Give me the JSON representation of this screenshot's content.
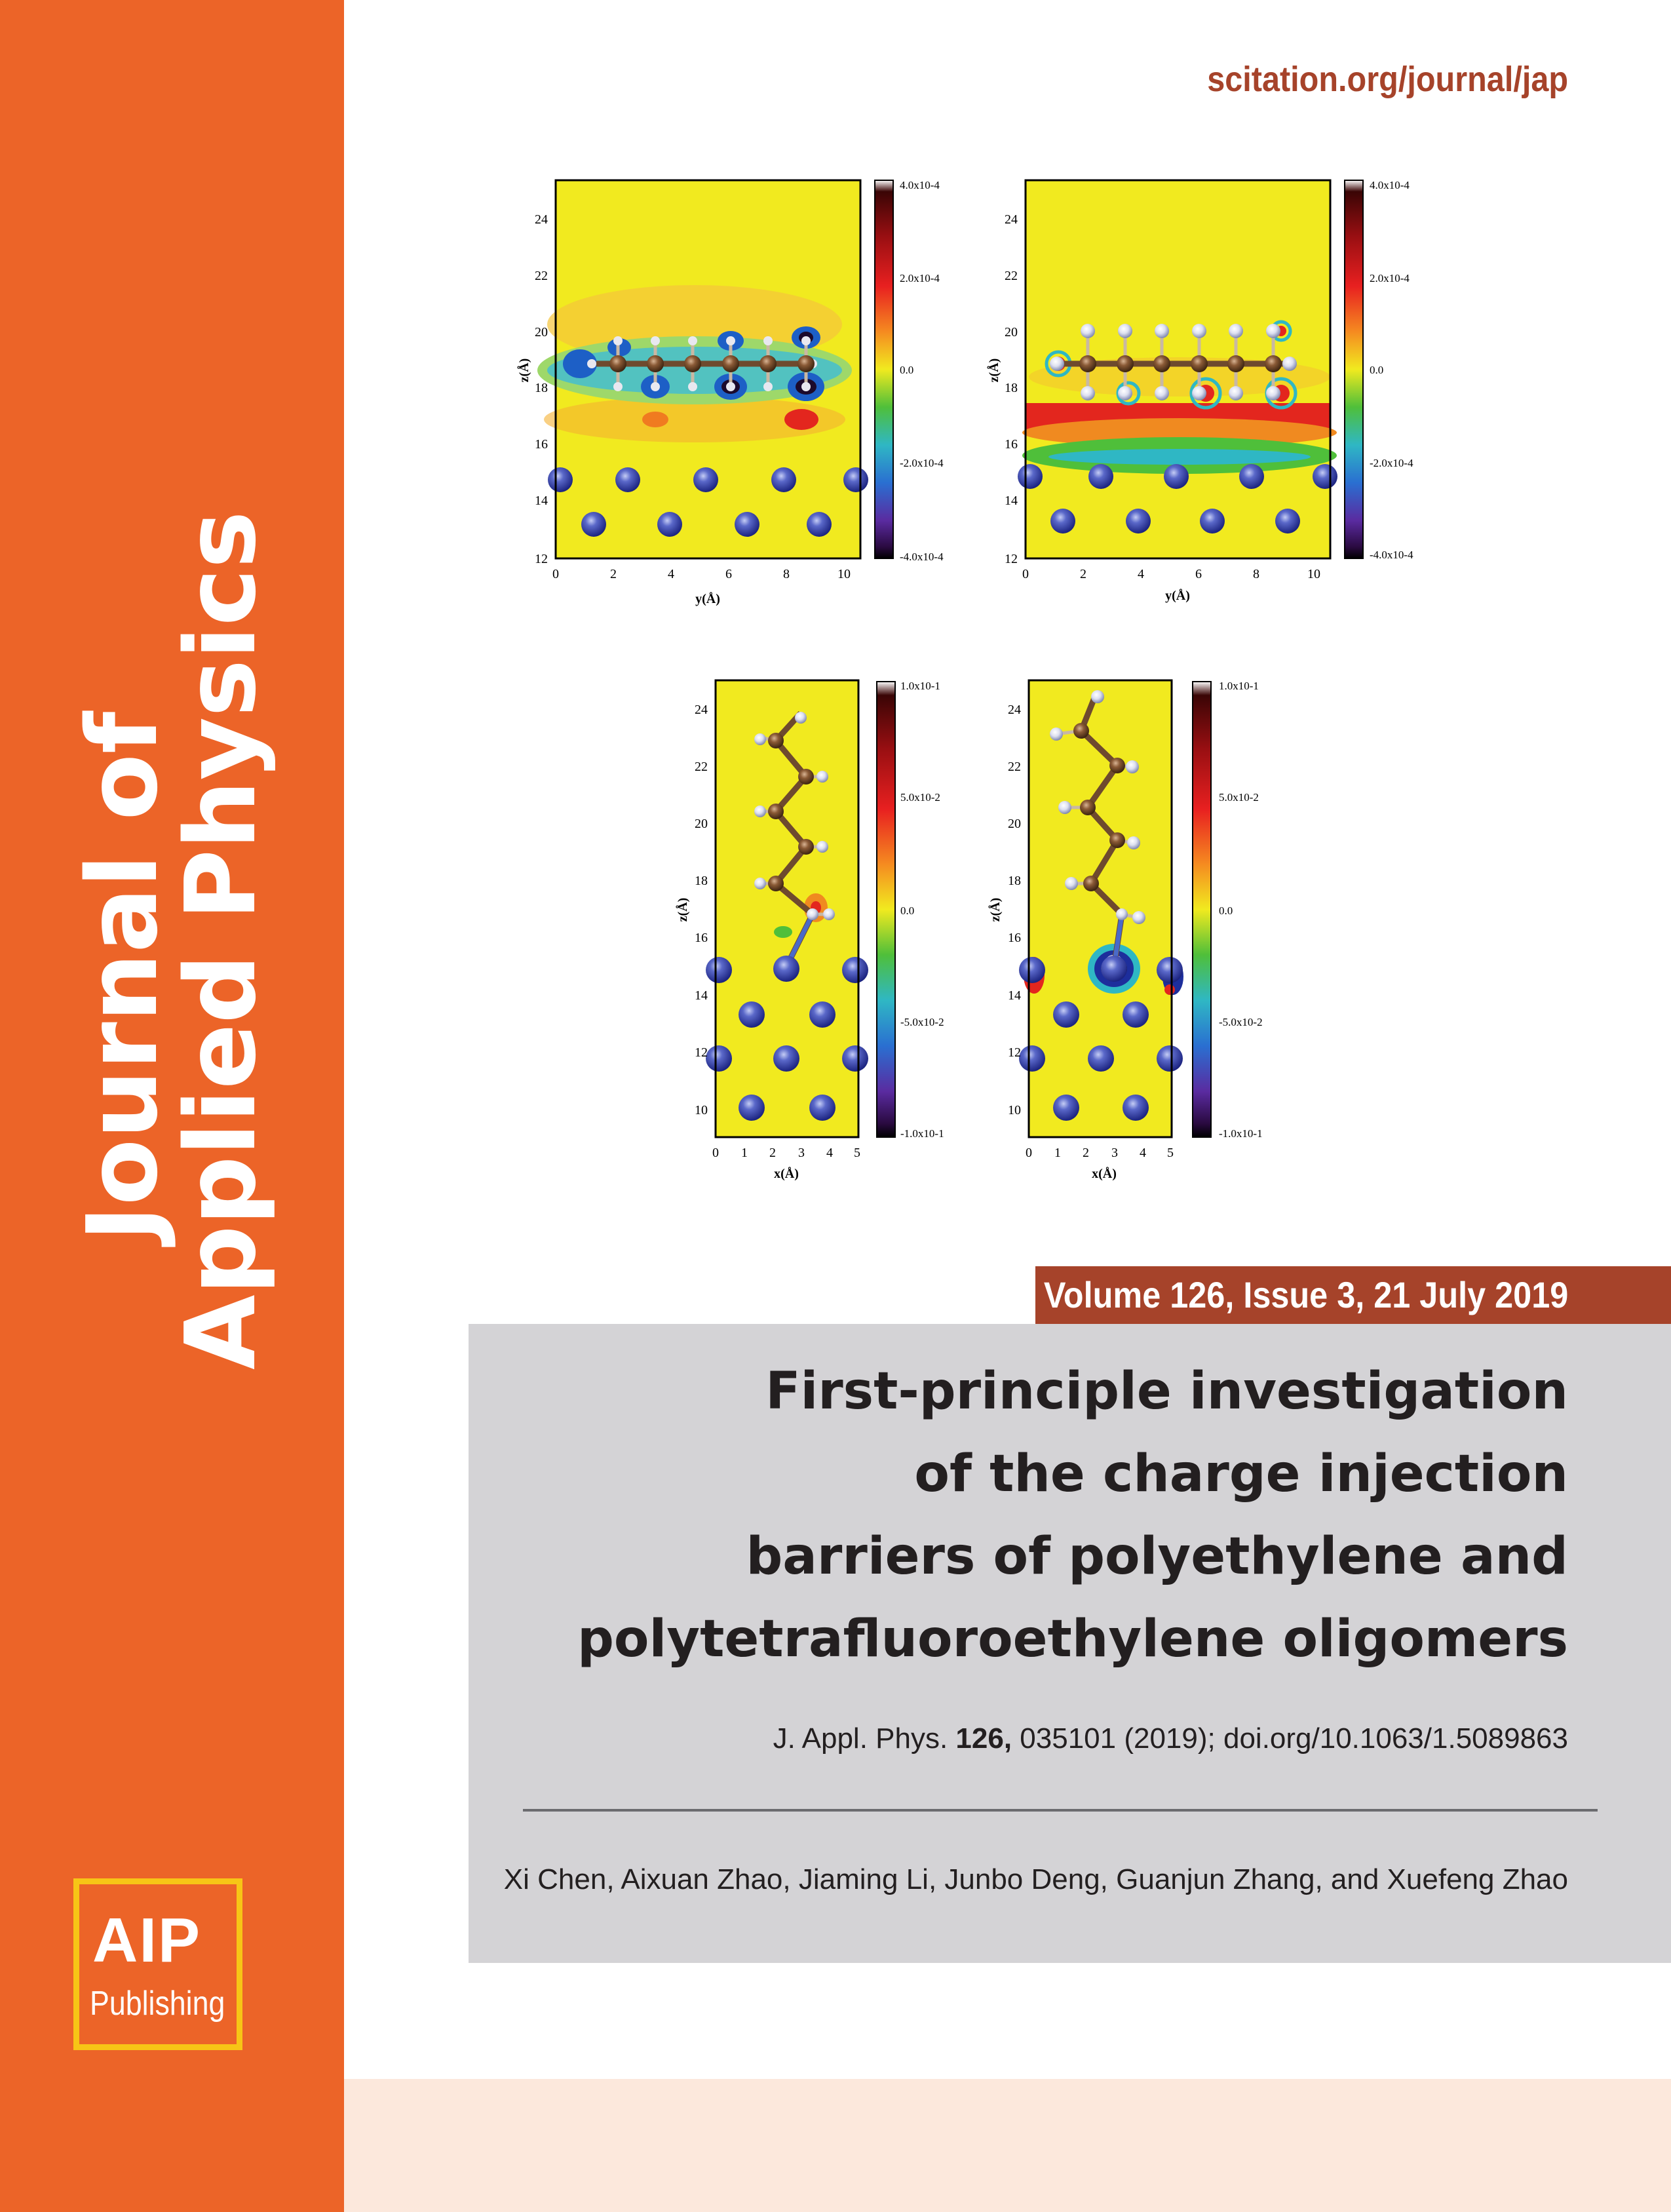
{
  "cover": {
    "journal_title_line1": "Journal of",
    "journal_title_line2": "Applied Physics",
    "url": "scitation.org/journal/jap",
    "volume_issue": "Volume 126, Issue 3, 21 July 2019",
    "article_title_lines": [
      "First-principle investigation",
      "of the charge injection",
      "barriers of polyethylene and",
      "polytetrafluoroethylene oligomers"
    ],
    "citation_prefix": "J. Appl. Phys. ",
    "citation_volume": "126,",
    "citation_rest": " 035101 (2019); doi.org/10.1063/1.5089863",
    "authors": "Xi Chen, Aixuan Zhao, Jiaming Li, Junbo Deng, Guanjun Zhang, and Xuefeng Zhao",
    "logo_top": "AIP",
    "logo_bottom": "Publishing"
  },
  "colors": {
    "sidebar": "#ec6428",
    "accent": "#a6432a",
    "logo_border": "#f7c516",
    "gray_box": "#d4d3d6",
    "bottom_band": "#fce8dc"
  },
  "figure": {
    "panels": [
      {
        "id": "top-left",
        "xlabel": "y(Å)",
        "ylabel": "z(Å)",
        "x_ticks": [
          "0",
          "2",
          "4",
          "6",
          "8",
          "10"
        ],
        "y_ticks": [
          "12",
          "14",
          "16",
          "18",
          "20",
          "22",
          "24"
        ],
        "colorbar_ticks": [
          "4.0x10-4",
          "2.0x10-4",
          "0.0",
          "-2.0x10-4",
          "-4.0x10-4"
        ]
      },
      {
        "id": "top-right",
        "xlabel": "y(Å)",
        "ylabel": "z(Å)",
        "x_ticks": [
          "0",
          "2",
          "4",
          "6",
          "8",
          "10"
        ],
        "y_ticks": [
          "12",
          "14",
          "16",
          "18",
          "20",
          "22",
          "24"
        ],
        "colorbar_ticks": [
          "4.0x10-4",
          "2.0x10-4",
          "0.0",
          "-2.0x10-4",
          "-4.0x10-4"
        ]
      },
      {
        "id": "bottom-left",
        "xlabel": "x(Å)",
        "ylabel": "z(Å)",
        "x_ticks": [
          "0",
          "1",
          "2",
          "3",
          "4",
          "5"
        ],
        "y_ticks": [
          "10",
          "12",
          "14",
          "16",
          "18",
          "20",
          "22",
          "24"
        ],
        "colorbar_ticks": [
          "1.0x10-1",
          "5.0x10-2",
          "0.0",
          "-5.0x10-2",
          "-1.0x10-1"
        ]
      },
      {
        "id": "bottom-right",
        "xlabel": "x(Å)",
        "ylabel": "z(Å)",
        "x_ticks": [
          "0",
          "1",
          "2",
          "3",
          "4",
          "5"
        ],
        "y_ticks": [
          "10",
          "12",
          "14",
          "16",
          "18",
          "20",
          "22",
          "24"
        ],
        "colorbar_ticks": [
          "1.0x10-1",
          "5.0x10-2",
          "0.0",
          "-5.0x10-2",
          "-1.0x10-1"
        ]
      }
    ]
  }
}
